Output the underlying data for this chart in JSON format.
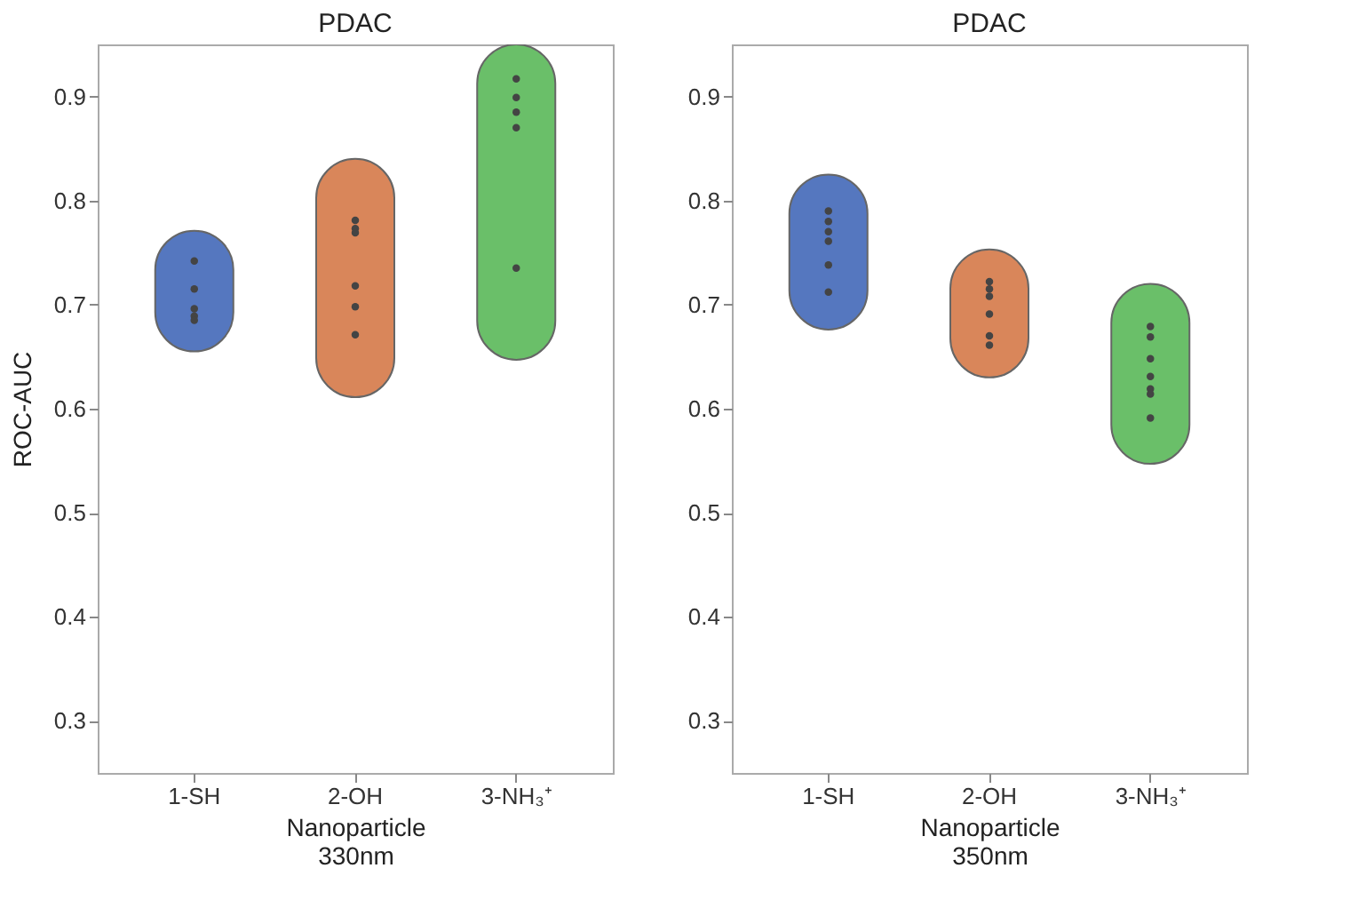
{
  "chart_data": [
    {
      "type": "bar",
      "title": "PDAC",
      "xlabel": "Nanoparticle\n330nm",
      "ylabel": "ROC-AUC",
      "categories": [
        "1-SH",
        "2-OH",
        "3-NH₃⁺"
      ],
      "ylim": [
        0.25,
        0.95
      ],
      "yticks": [
        0.3,
        0.4,
        0.5,
        0.6,
        0.7,
        0.8,
        0.9
      ],
      "grid": false,
      "series": [
        {
          "base": [
            0.655,
            0.611,
            0.647
          ],
          "values": [
            0.116,
            0.229,
            0.303
          ],
          "colors": [
            "#5577bf",
            "#d9865a",
            "#6abf69"
          ]
        },
        {
          "type": "scatter",
          "color": "#444444",
          "marker": "circle",
          "x": [
            "1-SH",
            "1-SH",
            "1-SH",
            "1-SH",
            "1-SH",
            "2-OH",
            "2-OH",
            "2-OH",
            "2-OH",
            "2-OH",
            "2-OH",
            "3-NH₃⁺",
            "3-NH₃⁺",
            "3-NH₃⁺",
            "3-NH₃⁺",
            "3-NH₃⁺"
          ],
          "values": [
            0.742,
            0.715,
            0.696,
            0.689,
            0.685,
            0.781,
            0.773,
            0.769,
            0.718,
            0.698,
            0.671,
            0.917,
            0.899,
            0.885,
            0.87,
            0.735
          ]
        }
      ]
    },
    {
      "type": "bar",
      "title": "PDAC",
      "xlabel": "Nanoparticle\n350nm",
      "categories": [
        "1-SH",
        "2-OH",
        "3-NH₃⁺"
      ],
      "ylim": [
        0.25,
        0.95
      ],
      "yticks": [
        0.3,
        0.4,
        0.5,
        0.6,
        0.7,
        0.8,
        0.9
      ],
      "grid": false,
      "series": [
        {
          "base": [
            0.676,
            0.63,
            0.547
          ],
          "values": [
            0.149,
            0.123,
            0.173
          ],
          "colors": [
            "#5577bf",
            "#d9865a",
            "#6abf69"
          ]
        },
        {
          "type": "scatter",
          "color": "#444444",
          "marker": "circle",
          "x": [
            "1-SH",
            "1-SH",
            "1-SH",
            "1-SH",
            "1-SH",
            "1-SH",
            "2-OH",
            "2-OH",
            "2-OH",
            "2-OH",
            "2-OH",
            "2-OH",
            "3-NH₃⁺",
            "3-NH₃⁺",
            "3-NH₃⁺",
            "3-NH₃⁺",
            "3-NH₃⁺",
            "3-NH₃⁺",
            "3-NH₃⁺"
          ],
          "values": [
            0.79,
            0.78,
            0.77,
            0.761,
            0.738,
            0.712,
            0.722,
            0.715,
            0.708,
            0.691,
            0.67,
            0.661,
            0.679,
            0.669,
            0.648,
            0.631,
            0.619,
            0.614,
            0.591
          ]
        }
      ]
    }
  ]
}
